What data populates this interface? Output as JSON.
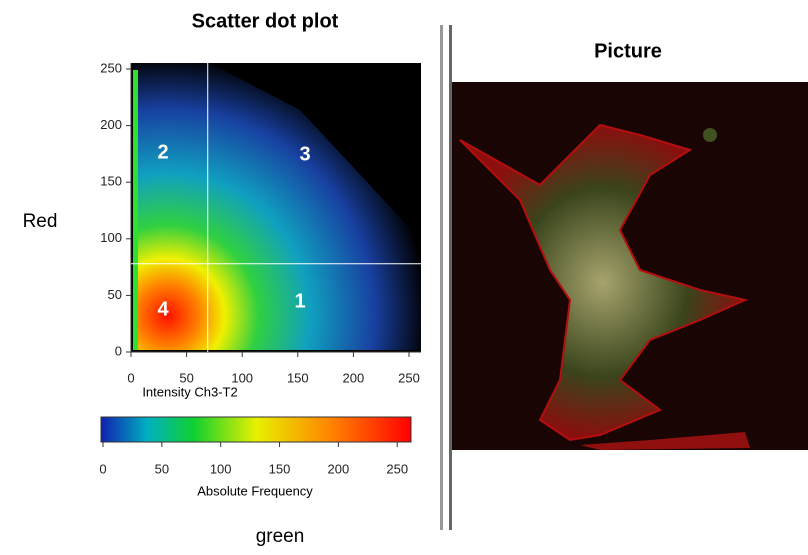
{
  "left_panel": {
    "title": "Scatter dot plot",
    "y_label": "Red",
    "x_label": "green",
    "plot": {
      "x_axis_title": "Intensity Ch3-T2",
      "xlim": [
        0,
        260
      ],
      "ylim": [
        0,
        260
      ],
      "xticks": [
        0,
        50,
        100,
        150,
        200,
        250
      ],
      "yticks": [
        0,
        50,
        100,
        150,
        200,
        250
      ],
      "threshold_x": 69,
      "threshold_y": 78,
      "quadrants": [
        "1",
        "2",
        "3",
        "4"
      ]
    },
    "colorbar": {
      "title": "Absolute Frequency",
      "lim": [
        0,
        260
      ],
      "ticks": [
        0,
        50,
        100,
        150,
        200,
        250
      ]
    }
  },
  "right_panel": {
    "title": "Picture"
  }
}
